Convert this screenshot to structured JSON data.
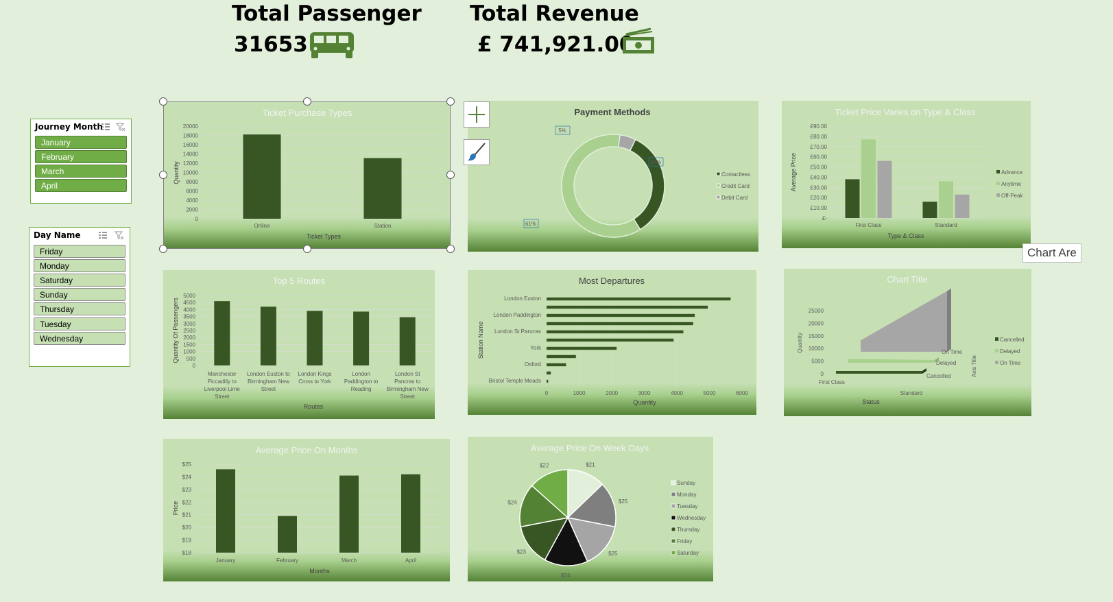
{
  "kpis": {
    "passenger_title": "Total Passenger",
    "passenger_value": "31653",
    "revenue_title": "Total Revenue",
    "revenue_value": "£ 741,921.00"
  },
  "slicers": {
    "journey_month": {
      "title": "Journey Month",
      "items": [
        "January",
        "February",
        "March",
        "April"
      ]
    },
    "day_name": {
      "title": "Day Name",
      "items": [
        "Friday",
        "Monday",
        "Saturday",
        "Sunday",
        "Thursday",
        "Tuesday",
        "Wednesday"
      ]
    }
  },
  "tooltip": "Chart Are",
  "colors": {
    "dark": "#375623",
    "mid": "#a9d08e",
    "grey": "#a6a6a6",
    "accent": "#70ad47"
  },
  "chart_data": [
    {
      "id": "ticket_purchase_types",
      "type": "bar",
      "title": "Ticket Purchase Types",
      "xlabel": "Ticket Types",
      "ylabel": "Quantity",
      "categories": [
        "Online",
        "Station"
      ],
      "values": [
        18200,
        13100
      ],
      "ylim": [
        0,
        20000
      ],
      "yticks": [
        "20000",
        "18000",
        "16000",
        "14000",
        "12000",
        "10000",
        "8000",
        "6000",
        "4000",
        "2000",
        "0"
      ]
    },
    {
      "id": "payment_methods",
      "type": "pie",
      "title": "Payment Methods",
      "labels": [
        "Contactless",
        "Credit Card",
        "Debit Card"
      ],
      "values": [
        34,
        61,
        5
      ],
      "data_labels": [
        "34%",
        "61%",
        "5%"
      ]
    },
    {
      "id": "ticket_price_type_class",
      "type": "bar",
      "title": "Ticket Price Varies on Type & Class",
      "xlabel": "Type & Class",
      "ylabel": "Average Price",
      "categories": [
        "First Class",
        "Standard"
      ],
      "series": [
        {
          "name": "Advance",
          "values": [
            38,
            16
          ]
        },
        {
          "name": "Anytime",
          "values": [
            77,
            36
          ]
        },
        {
          "name": "Off-Peak",
          "values": [
            56,
            23
          ]
        }
      ],
      "ylim": [
        0,
        90
      ],
      "yticks": [
        "£90.00",
        "£80.00",
        "£70.00",
        "£60.00",
        "£50.00",
        "£40.00",
        "£30.00",
        "£20.00",
        "£10.00",
        "£-"
      ]
    },
    {
      "id": "top_5_routes",
      "type": "bar",
      "title": "Top 5 Routes",
      "xlabel": "Routes",
      "ylabel": "Quantity Of Passengers",
      "categories": [
        "Manchester Piccadilly to Liverpool Lime Street",
        "London Euston to Birmingham New Street",
        "London Kings Cross to York",
        "London Paddington to Reading",
        "London St Pancras to Birmingham New Street"
      ],
      "category_lines": [
        [
          "Manchester",
          "Piccadilly to",
          "Liverpool Lime",
          "Street"
        ],
        [
          "London Euston to",
          "Birmingham New",
          "Street"
        ],
        [
          "London Kings",
          "Cross to York"
        ],
        [
          "London",
          "Paddington to",
          "Reading"
        ],
        [
          "London St",
          "Pancras to",
          "Birmingham New",
          "Street"
        ]
      ],
      "values": [
        4600,
        4200,
        3900,
        3850,
        3450
      ],
      "ylim": [
        0,
        5000
      ],
      "yticks": [
        "5000",
        "4500",
        "4000",
        "3500",
        "3000",
        "2500",
        "2000",
        "1500",
        "1000",
        "500",
        "0"
      ]
    },
    {
      "id": "most_departures",
      "type": "bar",
      "title": "Most Departures",
      "xlabel": "Quantity",
      "ylabel": "Station Name",
      "categories": [
        "London Euston",
        "",
        "London Paddington",
        "",
        "London St Pancras",
        "",
        "York",
        "",
        "Oxford",
        "",
        "Bristol Temple Meads"
      ],
      "values": [
        5650,
        4950,
        4550,
        4500,
        4200,
        3900,
        2150,
        900,
        600,
        130,
        50
      ],
      "xlim": [
        0,
        6000
      ],
      "xticks": [
        "0",
        "1000",
        "2000",
        "3000",
        "4000",
        "5000",
        "6000"
      ]
    },
    {
      "id": "chart_title_3d",
      "type": "area",
      "title": "Chart Title",
      "xlabel": "Status",
      "ylabel": "Quantity",
      "zlabel": "Axis Title",
      "categories": [
        "First Class",
        "Standard"
      ],
      "series": [
        {
          "name": "Cancelled",
          "values": [
            1000,
            200
          ]
        },
        {
          "name": "Delayed",
          "values": [
            1500,
            400
          ]
        },
        {
          "name": "On Time",
          "values": [
            4500,
            24000
          ]
        }
      ],
      "depth_labels": [
        "Cancelled",
        "Delayed",
        "On Time"
      ],
      "ylim": [
        0,
        25000
      ],
      "yticks": [
        "25000",
        "20000",
        "15000",
        "10000",
        "5000",
        "0"
      ]
    },
    {
      "id": "avg_price_months",
      "type": "bar",
      "title": "Average Price On Months",
      "xlabel": "Months",
      "ylabel": "Price",
      "categories": [
        "January",
        "February",
        "March",
        "April"
      ],
      "values": [
        24.6,
        20.9,
        24.1,
        24.2
      ],
      "ylim": [
        18,
        25
      ],
      "yticks": [
        "$25",
        "$24",
        "$23",
        "$22",
        "$21",
        "$20",
        "$19",
        "$18"
      ]
    },
    {
      "id": "avg_price_weekdays",
      "type": "pie",
      "title": "Average Price On Week Days",
      "labels": [
        "Sunday",
        "Monday",
        "Tuesday",
        "Wednesday",
        "Thursday",
        "Friday",
        "Saturday"
      ],
      "values": [
        21,
        25,
        25,
        24,
        23,
        24,
        22
      ],
      "data_labels": [
        "$21",
        "$25",
        "$25",
        "$24",
        "$23",
        "$24",
        "$22"
      ],
      "colors": [
        "#e2efda",
        "#7f7f7f",
        "#a5a5a5",
        "#111111",
        "#375623",
        "#548235",
        "#70ad47"
      ]
    }
  ]
}
